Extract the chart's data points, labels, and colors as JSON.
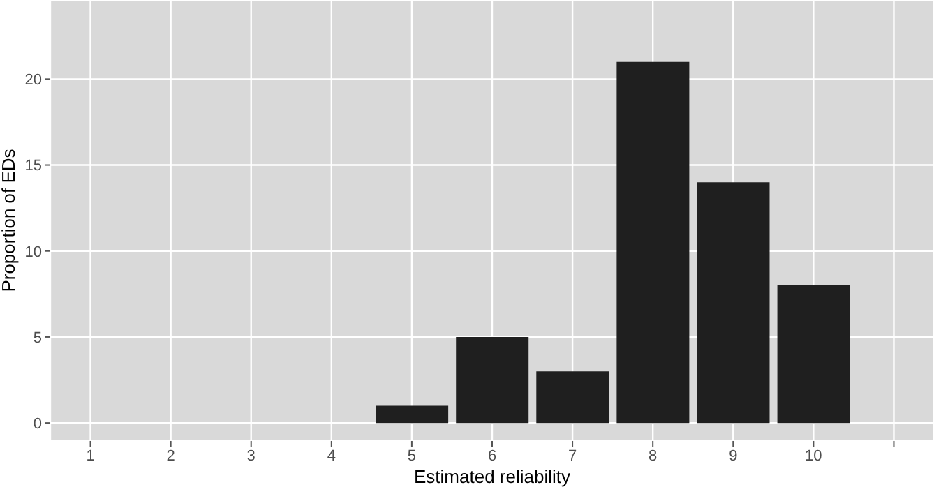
{
  "chart_data": {
    "type": "bar",
    "xlabel": "Estimated reliability",
    "ylabel": "Proportion of EDs",
    "categories": [
      "1",
      "2",
      "3",
      "4",
      "5",
      "6",
      "7",
      "8",
      "9",
      "10",
      null
    ],
    "values": [
      0,
      0,
      0,
      0,
      1,
      5,
      3,
      21,
      14,
      8,
      null
    ],
    "color": "#1f1f1f",
    "ylim": [
      -1.05,
      24.6
    ],
    "yticks": [
      0,
      5,
      10,
      15,
      20
    ],
    "grid": true
  }
}
